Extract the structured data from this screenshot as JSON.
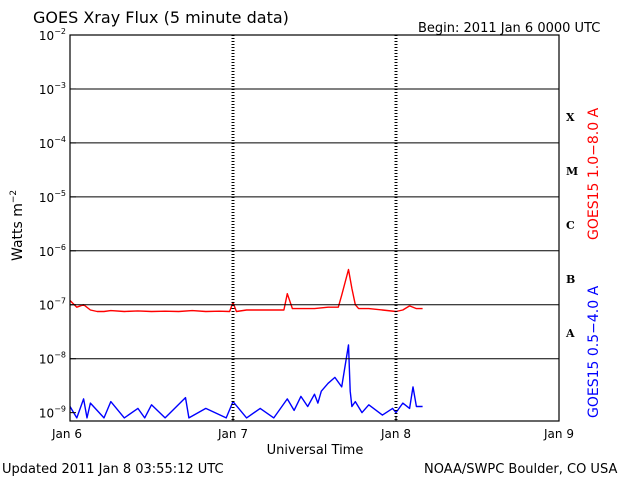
{
  "chart_data": {
    "type": "line",
    "title": "GOES Xray Flux (5 minute data)",
    "begin_label": "Begin:  2011 Jan 6 0000 UTC",
    "updated_label": "Updated 2011 Jan  8 03:55:12 UTC",
    "credit_label": "NOAA/SWPC Boulder, CO USA",
    "xlabel": "Universal Time",
    "ylabel": {
      "base": "Watts m",
      "exponent": "−2"
    },
    "xlim": [
      "2011-01-06 00:00",
      "2011-01-09 00:00"
    ],
    "x_ticks": [
      {
        "label": "Jan 6",
        "value": "2011-01-06 00:00"
      },
      {
        "label": "Jan 7",
        "value": "2011-01-07 00:00"
      },
      {
        "label": "Jan 8",
        "value": "2011-01-08 00:00"
      },
      {
        "label": "Jan 9",
        "value": "2011-01-09 00:00"
      }
    ],
    "y_scale": "log",
    "ylim": [
      7e-10,
      0.01
    ],
    "y_ticks": [
      {
        "value": 0.01,
        "base": "10",
        "exp": "−2"
      },
      {
        "value": 0.001,
        "base": "10",
        "exp": "−3"
      },
      {
        "value": 0.0001,
        "base": "10",
        "exp": "−4"
      },
      {
        "value": 1e-05,
        "base": "10",
        "exp": "−5"
      },
      {
        "value": 1e-06,
        "base": "10",
        "exp": "−6"
      },
      {
        "value": 1e-07,
        "base": "10",
        "exp": "−7"
      },
      {
        "value": 1e-08,
        "base": "10",
        "exp": "−8"
      },
      {
        "value": 1e-09,
        "base": "10",
        "exp": "−9"
      }
    ],
    "flare_classes": [
      {
        "label": "X",
        "value": 0.0003
      },
      {
        "label": "M",
        "value": 3e-05
      },
      {
        "label": "C",
        "value": 3e-06
      },
      {
        "label": "B",
        "value": 3e-07
      },
      {
        "label": "A",
        "value": 3e-08
      }
    ],
    "gridlines": [
      0.001,
      0.0001,
      1e-05,
      1e-06,
      1e-07,
      1e-08
    ],
    "day_dividers": [
      "2011-01-07 00:00",
      "2011-01-08 00:00"
    ],
    "series": [
      {
        "name": "GOES15 1.0−8.0 A",
        "color": "#ff0000",
        "x": [
          "2011-01-06 00:00",
          "2011-01-06 01:00",
          "2011-01-06 02:00",
          "2011-01-06 03:00",
          "2011-01-06 04:00",
          "2011-01-06 05:00",
          "2011-01-06 06:00",
          "2011-01-06 08:00",
          "2011-01-06 10:00",
          "2011-01-06 12:00",
          "2011-01-06 14:00",
          "2011-01-06 16:00",
          "2011-01-06 18:00",
          "2011-01-06 20:00",
          "2011-01-06 22:00",
          "2011-01-06 23:30",
          "2011-01-07 00:00",
          "2011-01-07 00:30",
          "2011-01-07 02:00",
          "2011-01-07 04:00",
          "2011-01-07 06:00",
          "2011-01-07 07:30",
          "2011-01-07 08:00",
          "2011-01-07 08:45",
          "2011-01-07 10:00",
          "2011-01-07 12:00",
          "2011-01-07 14:00",
          "2011-01-07 15:30",
          "2011-01-07 16:00",
          "2011-01-07 17:00",
          "2011-01-07 17:30",
          "2011-01-07 18:00",
          "2011-01-07 18:30",
          "2011-01-07 19:00",
          "2011-01-07 20:00",
          "2011-01-07 22:00",
          "2011-01-08 00:00",
          "2011-01-08 01:00",
          "2011-01-08 02:00",
          "2011-01-08 03:00",
          "2011-01-08 03:55"
        ],
        "y": [
          1.2e-07,
          9e-08,
          1e-07,
          8e-08,
          7.5e-08,
          7.5e-08,
          7.8e-08,
          7.5e-08,
          7.7e-08,
          7.5e-08,
          7.6e-08,
          7.5e-08,
          7.8e-08,
          7.5e-08,
          7.6e-08,
          7.5e-08,
          1.1e-07,
          7.5e-08,
          8e-08,
          8e-08,
          8e-08,
          8e-08,
          1.6e-07,
          8.5e-08,
          8.5e-08,
          8.5e-08,
          9e-08,
          9e-08,
          1.5e-07,
          4.5e-07,
          2e-07,
          1e-07,
          8.5e-08,
          8.5e-08,
          8.5e-08,
          8e-08,
          7.5e-08,
          8e-08,
          9.5e-08,
          8.5e-08,
          8.5e-08
        ]
      },
      {
        "name": "GOES15 0.5−4.0 A",
        "color": "#0000ff",
        "x": [
          "2011-01-06 00:00",
          "2011-01-06 01:00",
          "2011-01-06 02:00",
          "2011-01-06 02:30",
          "2011-01-06 03:00",
          "2011-01-06 05:00",
          "2011-01-06 06:00",
          "2011-01-06 08:00",
          "2011-01-06 10:00",
          "2011-01-06 11:00",
          "2011-01-06 12:00",
          "2011-01-06 14:00",
          "2011-01-06 17:00",
          "2011-01-06 17:30",
          "2011-01-06 20:00",
          "2011-01-06 23:00",
          "2011-01-07 00:00",
          "2011-01-07 02:00",
          "2011-01-07 04:00",
          "2011-01-07 06:00",
          "2011-01-07 08:00",
          "2011-01-07 09:00",
          "2011-01-07 10:00",
          "2011-01-07 11:00",
          "2011-01-07 12:00",
          "2011-01-07 12:30",
          "2011-01-07 13:00",
          "2011-01-07 14:00",
          "2011-01-07 15:00",
          "2011-01-07 16:00",
          "2011-01-07 17:00",
          "2011-01-07 17:15",
          "2011-01-07 17:30",
          "2011-01-07 18:00",
          "2011-01-07 19:00",
          "2011-01-07 20:00",
          "2011-01-07 22:00",
          "2011-01-07 23:30",
          "2011-01-08 00:00",
          "2011-01-08 01:00",
          "2011-01-08 02:00",
          "2011-01-08 02:30",
          "2011-01-08 03:00",
          "2011-01-08 03:55"
        ],
        "y": [
          1.3e-09,
          8e-10,
          1.8e-09,
          8e-10,
          1.5e-09,
          8e-10,
          1.6e-09,
          8e-10,
          1.2e-09,
          8e-10,
          1.4e-09,
          8e-10,
          1.9e-09,
          8e-10,
          1.2e-09,
          8e-10,
          1.6e-09,
          8e-10,
          1.2e-09,
          8e-10,
          1.8e-09,
          1.1e-09,
          2e-09,
          1.3e-09,
          2.2e-09,
          1.5e-09,
          2.5e-09,
          3.5e-09,
          4.5e-09,
          3e-09,
          1.8e-08,
          2.5e-09,
          1.3e-09,
          1.6e-09,
          1e-09,
          1.4e-09,
          9e-10,
          1.2e-09,
          1e-09,
          1.5e-09,
          1.2e-09,
          3e-09,
          1.3e-09,
          1.3e-09
        ]
      }
    ]
  }
}
